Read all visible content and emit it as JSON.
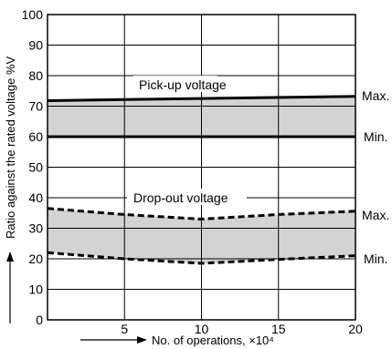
{
  "chart_data": {
    "type": "line",
    "title": "",
    "xlabel": "No. of operations, ×10⁴",
    "ylabel": "Ratio against the rated voltage %V",
    "xlim": [
      0,
      20
    ],
    "ylim": [
      0,
      100
    ],
    "x_ticks": [
      "5",
      "10",
      "15",
      "20"
    ],
    "y_ticks": [
      "0",
      "10",
      "20",
      "30",
      "40",
      "50",
      "60",
      "70",
      "80",
      "90",
      "100"
    ],
    "grid": true,
    "annotations": {
      "pickup_label": "Pick-up voltage",
      "dropout_label": "Drop-out voltage",
      "pickup_max": "Max.",
      "pickup_min": "Min.",
      "dropout_max": "Max.",
      "dropout_min": "Min."
    },
    "series": [
      {
        "name": "Pick-up voltage Max.",
        "style": "solid",
        "x": [
          0,
          20
        ],
        "y": [
          71.8,
          73.2
        ]
      },
      {
        "name": "Pick-up voltage Min.",
        "style": "solid",
        "x": [
          0,
          20
        ],
        "y": [
          60,
          60
        ]
      },
      {
        "name": "Drop-out voltage Max.",
        "style": "dashed",
        "x": [
          0,
          5,
          10,
          15,
          20
        ],
        "y": [
          36.5,
          34.5,
          33,
          34.5,
          35.6
        ]
      },
      {
        "name": "Drop-out voltage Min.",
        "style": "dashed",
        "x": [
          0,
          5,
          10,
          15,
          20
        ],
        "y": [
          22,
          20,
          18.5,
          19.8,
          21
        ]
      }
    ],
    "bands": [
      {
        "upper": "Pick-up voltage Max.",
        "lower": "Pick-up voltage Min.",
        "color": "#d3d3d3"
      },
      {
        "upper": "Drop-out voltage Max.",
        "lower": "Drop-out voltage Min.",
        "color": "#d3d3d3"
      }
    ],
    "colors": {
      "line": "#000000",
      "band": "#d3d3d3",
      "grid": "#000000"
    }
  }
}
